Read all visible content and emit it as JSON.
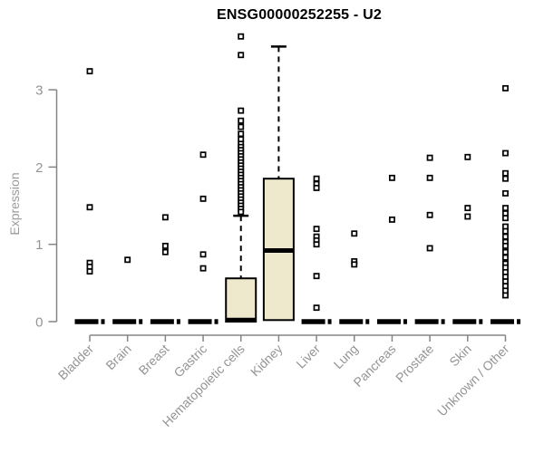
{
  "title": "ENSG00000252255 - U2",
  "chart_data": {
    "type": "boxplot",
    "title": "ENSG00000252255 - U2",
    "xlabel": "",
    "ylabel": "Expression",
    "ylim": [
      0,
      3.8
    ],
    "yticks": [
      0,
      1,
      2,
      3
    ],
    "grid": false,
    "legend": "none",
    "colors": {
      "box_fill": "#EEE8CD",
      "box_line": "#000000",
      "median_line": "#000000",
      "whisker_line": "#000000",
      "outlier_stroke": "#000000",
      "outlier_fill": "#ffffff",
      "axis_line": "#858585",
      "tick_label": "#949494",
      "background": "#ffffff"
    },
    "categories": [
      "Bladder",
      "Brain",
      "Breast",
      "Gastric",
      "Hematopoietic cells",
      "Kidney",
      "Liver",
      "Lung",
      "Pancreas",
      "Prostate",
      "Skin",
      "Unknown / Other"
    ],
    "boxes": [
      {
        "category": "Bladder",
        "q1": 0,
        "median": 0,
        "q3": 0,
        "whisker_low": 0,
        "whisker_high": 0,
        "outliers": [
          3.24,
          1.48,
          0.76,
          0.71,
          0.65
        ]
      },
      {
        "category": "Brain",
        "q1": 0,
        "median": 0,
        "q3": 0,
        "whisker_low": 0,
        "whisker_high": 0,
        "outliers": [
          0.8
        ]
      },
      {
        "category": "Breast",
        "q1": 0,
        "median": 0,
        "q3": 0,
        "whisker_low": 0,
        "whisker_high": 0,
        "outliers": [
          1.35,
          0.98,
          0.9
        ]
      },
      {
        "category": "Gastric",
        "q1": 0,
        "median": 0,
        "q3": 0,
        "whisker_low": 0,
        "whisker_high": 0,
        "outliers": [
          2.16,
          1.59,
          0.87,
          0.69
        ]
      },
      {
        "category": "Hematopoietic cells",
        "q1": 0,
        "median": 0.02,
        "q3": 0.56,
        "whisker_low": 0,
        "whisker_high": 1.37,
        "outliers": [
          3.69,
          3.45,
          2.73,
          2.6,
          2.52,
          2.43,
          2.36,
          2.3,
          2.26,
          2.22,
          2.18,
          2.14,
          2.1,
          2.06,
          2.02,
          1.98,
          1.94,
          1.9,
          1.86,
          1.82,
          1.78,
          1.74,
          1.7,
          1.66,
          1.62,
          1.58,
          1.54,
          1.5,
          1.46,
          1.42
        ]
      },
      {
        "category": "Kidney",
        "q1": 0.02,
        "median": 0.92,
        "q3": 1.85,
        "whisker_low": 0.02,
        "whisker_high": 3.56,
        "outliers": []
      },
      {
        "category": "Liver",
        "q1": 0,
        "median": 0,
        "q3": 0,
        "whisker_low": 0,
        "whisker_high": 0,
        "outliers": [
          1.85,
          1.78,
          1.73,
          1.2,
          1.1,
          1.05,
          1.0,
          0.59,
          0.18
        ]
      },
      {
        "category": "Lung",
        "q1": 0,
        "median": 0,
        "q3": 0,
        "whisker_low": 0,
        "whisker_high": 0,
        "outliers": [
          1.14,
          0.78,
          0.74
        ]
      },
      {
        "category": "Pancreas",
        "q1": 0,
        "median": 0,
        "q3": 0,
        "whisker_low": 0,
        "whisker_high": 0,
        "outliers": [
          1.86,
          1.32
        ]
      },
      {
        "category": "Prostate",
        "q1": 0,
        "median": 0,
        "q3": 0,
        "whisker_low": 0,
        "whisker_high": 0,
        "outliers": [
          2.12,
          1.86,
          1.38,
          0.95
        ]
      },
      {
        "category": "Skin",
        "q1": 0,
        "median": 0,
        "q3": 0,
        "whisker_low": 0,
        "whisker_high": 0,
        "outliers": [
          2.13,
          1.47,
          1.36
        ]
      },
      {
        "category": "Unknown / Other",
        "q1": 0,
        "median": 0,
        "q3": 0,
        "whisker_low": 0,
        "whisker_high": 0,
        "outliers": [
          3.02,
          2.18,
          1.92,
          1.85,
          1.66,
          1.47,
          1.4,
          1.34,
          1.23,
          1.17,
          1.1,
          1.03,
          0.98,
          0.9,
          0.83,
          0.75,
          0.7,
          0.64,
          0.58,
          0.52,
          0.46,
          0.4,
          0.34
        ]
      }
    ]
  }
}
